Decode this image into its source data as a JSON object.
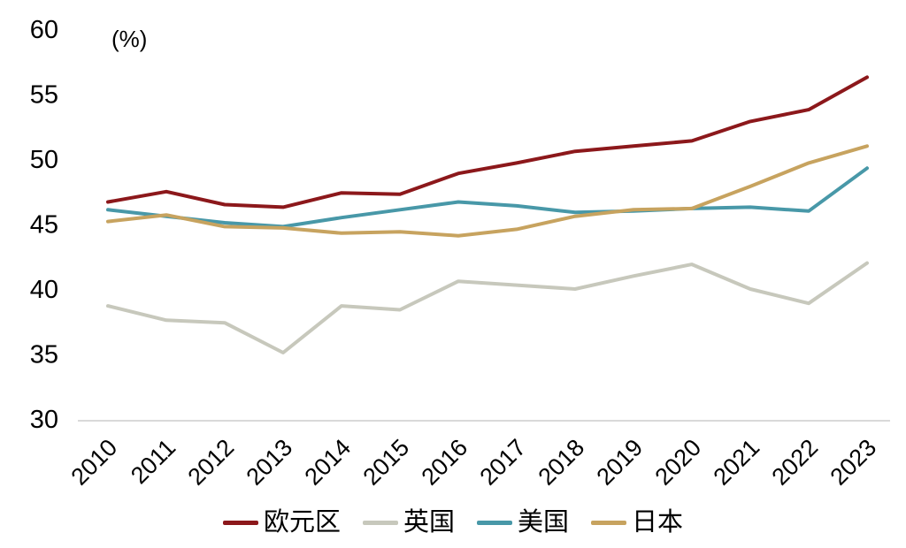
{
  "chart_data": {
    "type": "line",
    "title": "",
    "unit_label": "(%)",
    "x": [
      2010,
      2011,
      2012,
      2013,
      2014,
      2015,
      2016,
      2017,
      2018,
      2019,
      2020,
      2021,
      2022,
      2023
    ],
    "ylim": [
      30,
      60
    ],
    "yticks": [
      30,
      35,
      40,
      45,
      50,
      55,
      60
    ],
    "grid": false,
    "legend_position": "bottom",
    "axis_color": "#d9d9d9",
    "text_color": "#000000",
    "series": [
      {
        "key": "eurozone",
        "name": "欧元区",
        "color": "#8c181b",
        "values": [
          46.7,
          47.5,
          46.5,
          46.3,
          47.4,
          47.3,
          48.9,
          49.7,
          50.6,
          51.0,
          51.4,
          52.9,
          53.8,
          56.3
        ]
      },
      {
        "key": "uk",
        "name": "英国",
        "color": "#c7c8bc",
        "values": [
          38.7,
          37.6,
          37.4,
          35.1,
          38.7,
          38.4,
          40.6,
          40.3,
          40.0,
          41.0,
          41.9,
          40.0,
          38.9,
          42.0
        ]
      },
      {
        "key": "us",
        "name": "美国",
        "color": "#4898a8",
        "values": [
          46.1,
          45.6,
          45.1,
          44.8,
          45.5,
          46.1,
          46.7,
          46.4,
          45.9,
          46.0,
          46.2,
          46.3,
          46.0,
          49.3
        ]
      },
      {
        "key": "japan",
        "name": "日本",
        "color": "#c7a35f",
        "values": [
          45.2,
          45.7,
          44.8,
          44.7,
          44.3,
          44.4,
          44.1,
          44.6,
          45.6,
          46.1,
          46.2,
          47.9,
          49.7,
          51.0
        ]
      }
    ]
  }
}
